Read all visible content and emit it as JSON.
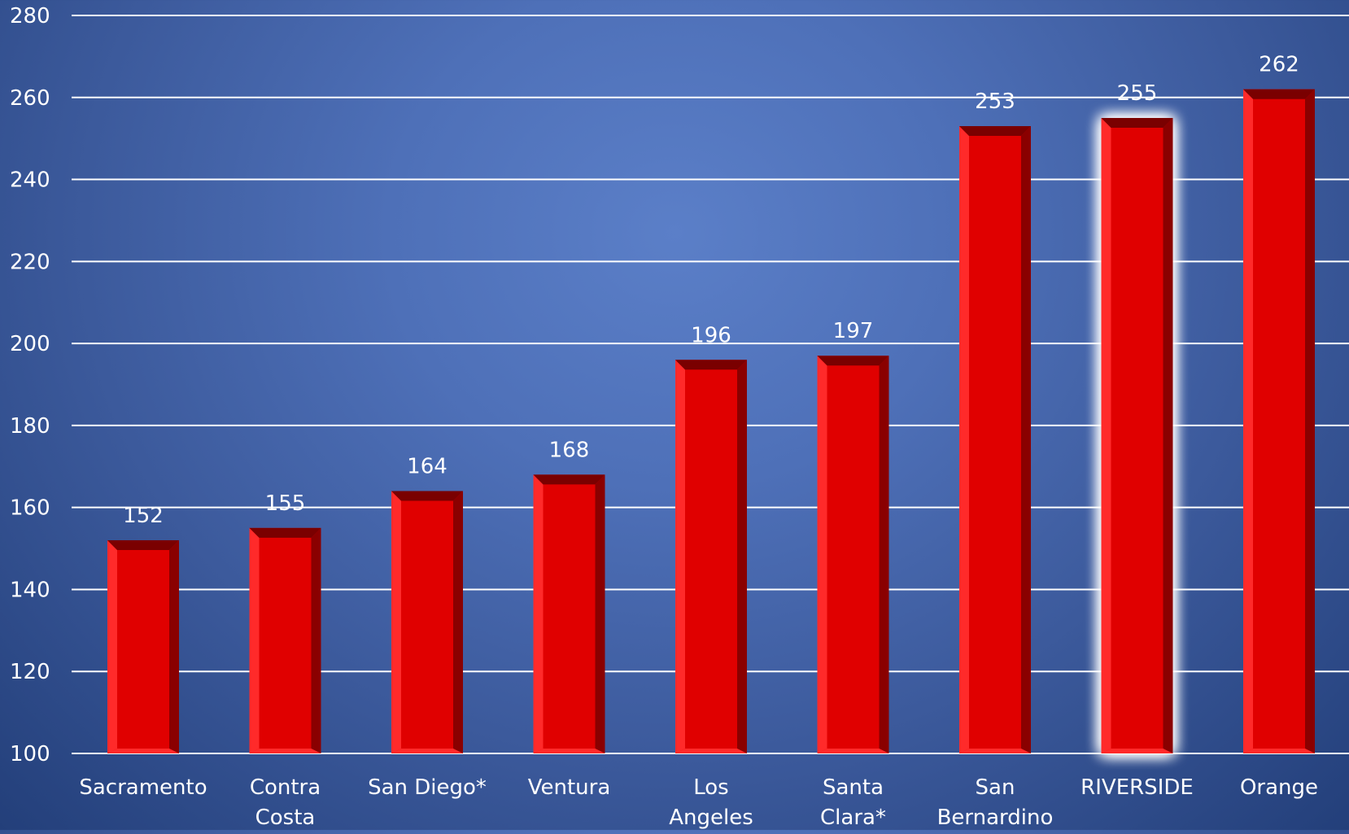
{
  "chart_data": {
    "type": "bar",
    "title": "",
    "xlabel": "",
    "ylabel": "",
    "categories": [
      "Sacramento",
      "Contra Costa",
      "San Diego*",
      "Ventura",
      "Los Angeles",
      "Santa Clara*",
      "San Bernardino",
      "RIVERSIDE",
      "Orange"
    ],
    "values": [
      152,
      155,
      164,
      168,
      196,
      197,
      253,
      255,
      262
    ],
    "data_labels": [
      "152",
      "155",
      "164",
      "168",
      "196",
      "197",
      "253",
      "255",
      "262"
    ],
    "ylim": [
      100,
      280
    ],
    "yticks": [
      100,
      120,
      140,
      160,
      180,
      200,
      220,
      240,
      260,
      280
    ],
    "ytick_labels": [
      "100",
      "120",
      "140",
      "160",
      "180",
      "200",
      "220",
      "240",
      "260",
      "280"
    ],
    "grid": true,
    "legend": "none",
    "highlighted_category": "RIVERSIDE"
  },
  "colors": {
    "bar_front": "#e00000",
    "bar_edge_light": "#ff2a2a",
    "bar_shadow": "#8a0000",
    "bar_top": "#7a0000",
    "gridline": "#ffffff",
    "text": "#ffffff",
    "highlight_glow": "#ffffff"
  }
}
